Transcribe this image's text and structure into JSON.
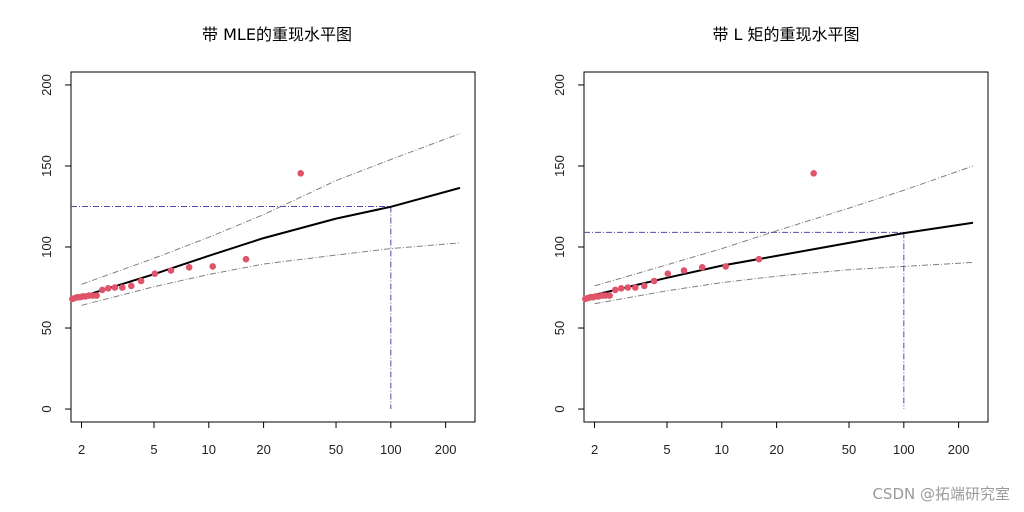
{
  "watermark": "CSDN @拓端研究室",
  "chart_data": [
    {
      "type": "scatter",
      "title": "带 MLE的重现水平图",
      "x_scale": "log",
      "xlim": [
        1.75,
        290
      ],
      "ylim": [
        -8,
        208
      ],
      "x_ticks": [
        2,
        5,
        10,
        20,
        50,
        100,
        200
      ],
      "y_ticks": [
        0,
        50,
        100,
        150,
        200
      ],
      "colors": {
        "points": "#df536b",
        "fit": "#000000",
        "ci": "#808080",
        "guide": "#4b4bab"
      },
      "points": [
        [
          1.78,
          68
        ],
        [
          1.84,
          68.5
        ],
        [
          1.9,
          69
        ],
        [
          1.96,
          69
        ],
        [
          2.03,
          69.5
        ],
        [
          2.1,
          69.5
        ],
        [
          2.2,
          70
        ],
        [
          2.3,
          70
        ],
        [
          2.42,
          70
        ],
        [
          2.6,
          73.5
        ],
        [
          2.8,
          74.5
        ],
        [
          3.05,
          75
        ],
        [
          3.35,
          75
        ],
        [
          3.75,
          76
        ],
        [
          4.25,
          79
        ],
        [
          5.05,
          83.5
        ],
        [
          6.2,
          85.5
        ],
        [
          7.8,
          87.5
        ],
        [
          10.5,
          88
        ],
        [
          16,
          92.5
        ],
        [
          32,
          145.5
        ]
      ],
      "fit_line": [
        [
          2,
          69.4
        ],
        [
          5,
          83.2
        ],
        [
          10,
          94.6
        ],
        [
          20,
          105.5
        ],
        [
          50,
          117.5
        ],
        [
          100,
          124.8
        ],
        [
          240,
          136.5
        ]
      ],
      "ci_upper": [
        [
          2,
          77
        ],
        [
          5,
          93
        ],
        [
          10,
          106
        ],
        [
          20,
          120
        ],
        [
          50,
          141
        ],
        [
          100,
          154
        ],
        [
          240,
          170
        ]
      ],
      "ci_lower": [
        [
          2,
          64
        ],
        [
          5,
          75.5
        ],
        [
          10,
          83
        ],
        [
          20,
          89.5
        ],
        [
          50,
          95
        ],
        [
          100,
          99
        ],
        [
          240,
          102.5
        ]
      ],
      "return_period": 100,
      "return_level": 125
    },
    {
      "type": "scatter",
      "title": "带 L 矩的重现水平图",
      "x_scale": "log",
      "xlim": [
        1.75,
        290
      ],
      "ylim": [
        -8,
        208
      ],
      "x_ticks": [
        2,
        5,
        10,
        20,
        50,
        100,
        200
      ],
      "y_ticks": [
        0,
        50,
        100,
        150,
        200
      ],
      "colors": {
        "points": "#df536b",
        "fit": "#000000",
        "ci": "#808080",
        "guide": "#4b4bab"
      },
      "points": [
        [
          1.78,
          68
        ],
        [
          1.84,
          68.5
        ],
        [
          1.9,
          69
        ],
        [
          1.96,
          69
        ],
        [
          2.03,
          69.5
        ],
        [
          2.1,
          69.5
        ],
        [
          2.2,
          70
        ],
        [
          2.3,
          70
        ],
        [
          2.42,
          70
        ],
        [
          2.6,
          73.5
        ],
        [
          2.8,
          74.5
        ],
        [
          3.05,
          75
        ],
        [
          3.35,
          75
        ],
        [
          3.75,
          76
        ],
        [
          4.25,
          79
        ],
        [
          5.05,
          83.5
        ],
        [
          6.2,
          85.5
        ],
        [
          7.8,
          87.5
        ],
        [
          10.5,
          88
        ],
        [
          16,
          92.5
        ],
        [
          32,
          145.5
        ]
      ],
      "fit_line": [
        [
          2,
          70.5
        ],
        [
          5,
          81
        ],
        [
          10,
          88.5
        ],
        [
          20,
          94.5
        ],
        [
          50,
          102.5
        ],
        [
          100,
          108.6
        ],
        [
          240,
          115
        ]
      ],
      "ci_upper": [
        [
          2,
          76
        ],
        [
          5,
          89
        ],
        [
          10,
          99
        ],
        [
          20,
          110
        ],
        [
          50,
          124
        ],
        [
          100,
          135
        ],
        [
          240,
          150
        ]
      ],
      "ci_lower": [
        [
          2,
          65
        ],
        [
          5,
          73
        ],
        [
          10,
          78
        ],
        [
          20,
          82
        ],
        [
          50,
          86
        ],
        [
          100,
          88
        ],
        [
          240,
          90.5
        ]
      ],
      "return_period": 100,
      "return_level": 109
    }
  ]
}
